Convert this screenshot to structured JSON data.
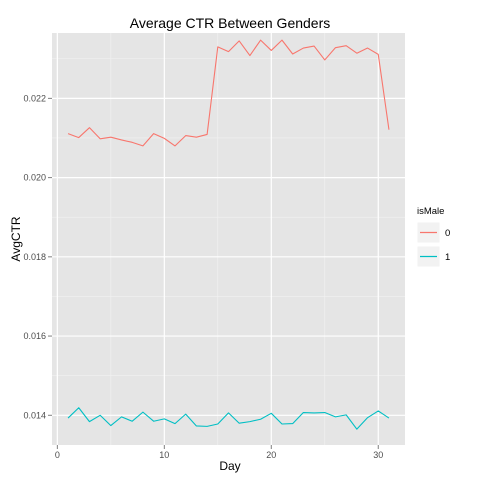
{
  "chart_data": {
    "type": "line",
    "title": "Average CTR Between Genders",
    "xlabel": "Day",
    "ylabel": "AvgCTR",
    "xlim": [
      -0.5,
      32.5
    ],
    "ylim": [
      0.01325,
      0.02365
    ],
    "x_ticks": [
      0,
      10,
      20,
      30
    ],
    "x_tick_labels": [
      "0",
      "10",
      "20",
      "30"
    ],
    "y_ticks": [
      0.014,
      0.016,
      0.018,
      0.02,
      0.022
    ],
    "y_tick_labels": [
      "0.014",
      "0.016",
      "0.018",
      "0.020",
      "0.022"
    ],
    "grid": true,
    "legend": {
      "title": "isMale",
      "position": "right"
    },
    "x": [
      1,
      2,
      3,
      4,
      5,
      6,
      7,
      8,
      9,
      10,
      11,
      12,
      13,
      14,
      15,
      16,
      17,
      18,
      19,
      20,
      21,
      22,
      23,
      24,
      25,
      26,
      27,
      28,
      29,
      30,
      31
    ],
    "series": [
      {
        "name": "0",
        "color": "#F8766D",
        "values": [
          0.02111,
          0.02101,
          0.02126,
          0.02098,
          0.02102,
          0.02095,
          0.02089,
          0.0208,
          0.02111,
          0.02099,
          0.0208,
          0.02106,
          0.02102,
          0.02109,
          0.0233,
          0.02318,
          0.02345,
          0.02308,
          0.02347,
          0.02321,
          0.02347,
          0.02312,
          0.02327,
          0.02332,
          0.02297,
          0.02328,
          0.02333,
          0.02314,
          0.02327,
          0.02311,
          0.02121
        ]
      },
      {
        "name": "1",
        "color": "#00BFC4",
        "values": [
          0.01393,
          0.01419,
          0.01384,
          0.014,
          0.01374,
          0.01396,
          0.01385,
          0.01408,
          0.01385,
          0.01391,
          0.01379,
          0.01403,
          0.01373,
          0.01372,
          0.01378,
          0.01406,
          0.0138,
          0.01384,
          0.0139,
          0.01405,
          0.01378,
          0.01379,
          0.01407,
          0.01406,
          0.01407,
          0.01396,
          0.01401,
          0.01365,
          0.01394,
          0.01411,
          0.01393
        ]
      }
    ]
  }
}
